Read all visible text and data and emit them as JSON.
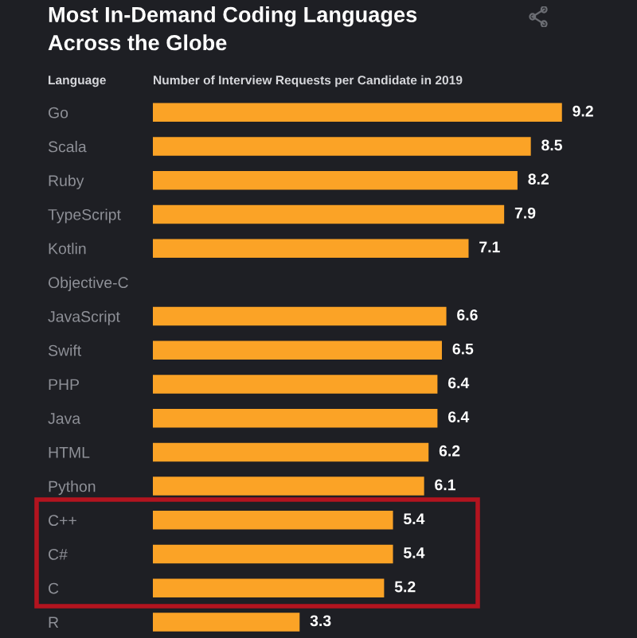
{
  "chart_data": {
    "type": "bar",
    "orientation": "horizontal",
    "title": "Most In-Demand Coding Languages\nAcross the Globe",
    "ylabel": "Language",
    "xlabel": "Number of Interview Requests per Candidate in 2019",
    "categories": [
      "Go",
      "Scala",
      "Ruby",
      "TypeScript",
      "Kotlin",
      "Objective-C",
      "JavaScript",
      "Swift",
      "PHP",
      "Java",
      "HTML",
      "Python",
      "C++",
      "C#",
      "C",
      "R"
    ],
    "values": [
      9.2,
      8.5,
      8.2,
      7.9,
      7.1,
      null,
      6.6,
      6.5,
      6.4,
      6.4,
      6.2,
      6.1,
      5.4,
      5.4,
      5.2,
      3.3
    ],
    "color": "#fba326",
    "data_labels": true
  }
}
